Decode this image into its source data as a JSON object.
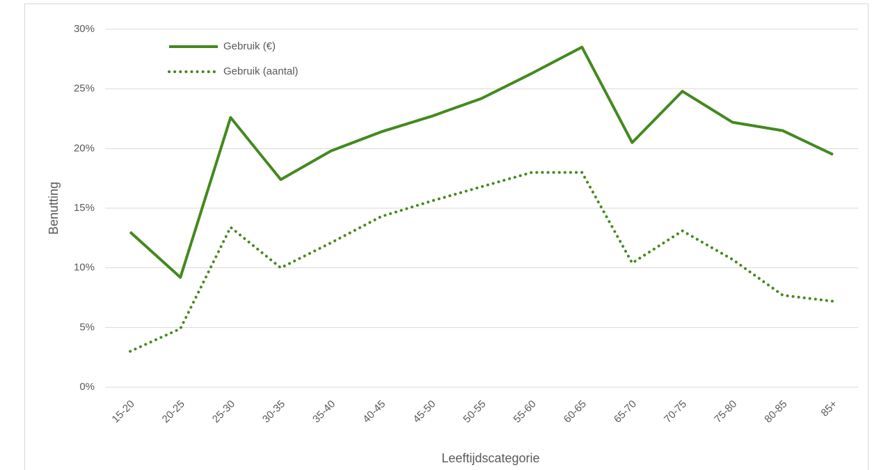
{
  "chart_data": {
    "type": "line",
    "xlabel": "Leeftijdscategorie",
    "ylabel": "Benutting",
    "categories": [
      "15-20",
      "20-25",
      "25-30",
      "30-35",
      "35-40",
      "40-45",
      "45-50",
      "50-55",
      "55-60",
      "60-65",
      "65-70",
      "70-75",
      "75-80",
      "80-85",
      "85+"
    ],
    "series": [
      {
        "name": "Gebruik (€)",
        "color": "#43891f",
        "style": "solid",
        "values": [
          13.0,
          9.2,
          22.6,
          17.4,
          19.8,
          21.4,
          22.7,
          24.2,
          26.3,
          28.5,
          20.5,
          24.8,
          22.2,
          21.5,
          19.5
        ]
      },
      {
        "name": "Gebruik (aantal)",
        "color": "#43891f",
        "style": "dotted",
        "values": [
          3.0,
          4.9,
          13.4,
          10.0,
          12.1,
          14.3,
          15.6,
          16.8,
          18.0,
          18.0,
          10.4,
          13.1,
          10.7,
          7.7,
          7.2
        ]
      }
    ],
    "ylim": [
      0,
      30
    ],
    "yticks": [
      {
        "value": 0,
        "label": "0%"
      },
      {
        "value": 5,
        "label": "5%"
      },
      {
        "value": 10,
        "label": "10%"
      },
      {
        "value": 15,
        "label": "15%"
      },
      {
        "value": 20,
        "label": "20%"
      },
      {
        "value": 25,
        "label": "25%"
      },
      {
        "value": 30,
        "label": "30%"
      }
    ],
    "grid": true,
    "legend": "top-left"
  }
}
